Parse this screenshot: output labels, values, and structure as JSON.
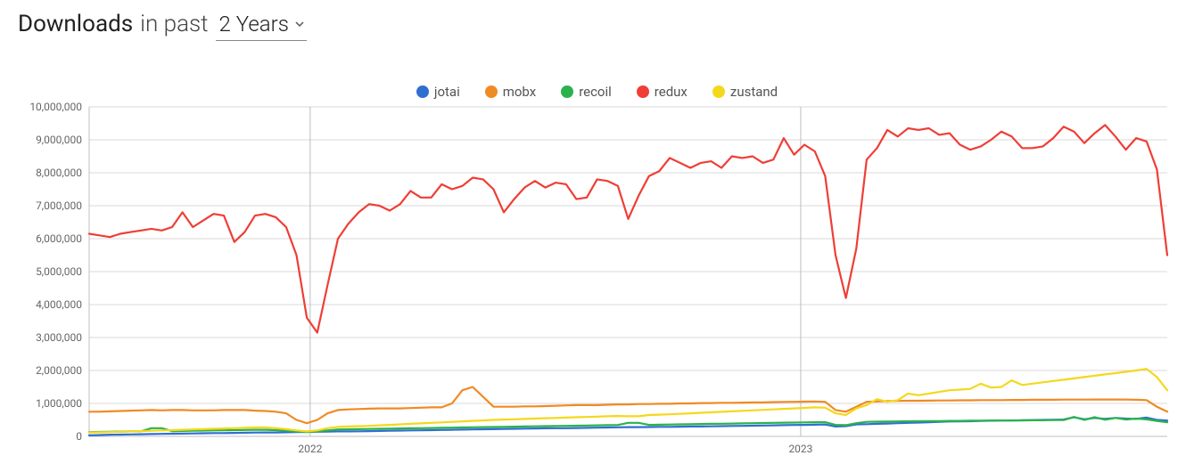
{
  "header": {
    "title_strong": "Downloads",
    "title_rest": "in past",
    "period_value": "2 Years"
  },
  "chart": {
    "type": "line",
    "background_color": "#ffffff",
    "grid_color": "#d8d8d8",
    "axis_color": "#bfbfbf",
    "year_line_color": "#bdbdbd",
    "line_width": 2.2,
    "ylim": [
      0,
      10000000
    ],
    "ytick_step": 1000000,
    "ytick_labels": [
      "0",
      "1,000,000",
      "2,000,000",
      "3,000,000",
      "4,000,000",
      "5,000,000",
      "6,000,000",
      "7,000,000",
      "8,000,000",
      "9,000,000",
      "10,000,000"
    ],
    "x_year_markers": [
      {
        "label": "2022",
        "t": 0.205
      },
      {
        "label": "2023",
        "t": 0.66
      }
    ],
    "series": [
      {
        "name": "jotai",
        "color": "#2f6fd0",
        "values": [
          30000,
          40000,
          50000,
          55000,
          60000,
          65000,
          70000,
          75000,
          80000,
          85000,
          90000,
          95000,
          100000,
          100000,
          105000,
          110000,
          115000,
          120000,
          120000,
          125000,
          130000,
          135000,
          140000,
          145000,
          150000,
          150000,
          155000,
          160000,
          165000,
          170000,
          175000,
          180000,
          185000,
          190000,
          195000,
          200000,
          205000,
          210000,
          215000,
          220000,
          225000,
          230000,
          235000,
          240000,
          245000,
          250000,
          250000,
          255000,
          260000,
          265000,
          270000,
          275000,
          280000,
          280000,
          285000,
          290000,
          290000,
          295000,
          300000,
          300000,
          305000,
          310000,
          315000,
          320000,
          325000,
          330000,
          335000,
          340000,
          345000,
          350000,
          355000,
          360000,
          300000,
          310000,
          365000,
          370000,
          380000,
          390000,
          400000,
          410000,
          420000,
          430000,
          440000,
          450000,
          455000,
          460000,
          470000,
          475000,
          480000,
          485000,
          490000,
          495000,
          500000,
          505000,
          510000,
          580000,
          520000,
          560000,
          530000,
          560000,
          540000,
          530000,
          570000,
          500000,
          480000
        ]
      },
      {
        "name": "mobx",
        "color": "#f08a24",
        "values": [
          750000,
          750000,
          760000,
          770000,
          780000,
          790000,
          800000,
          790000,
          800000,
          800000,
          790000,
          790000,
          790000,
          800000,
          800000,
          800000,
          780000,
          770000,
          750000,
          700000,
          500000,
          400000,
          500000,
          700000,
          800000,
          820000,
          830000,
          840000,
          850000,
          850000,
          850000,
          860000,
          870000,
          880000,
          880000,
          1000000,
          1400000,
          1500000,
          1200000,
          900000,
          900000,
          900000,
          910000,
          910000,
          920000,
          930000,
          940000,
          950000,
          950000,
          950000,
          960000,
          970000,
          970000,
          980000,
          980000,
          990000,
          990000,
          1000000,
          1000000,
          1010000,
          1010000,
          1020000,
          1020000,
          1025000,
          1030000,
          1030000,
          1040000,
          1045000,
          1050000,
          1055000,
          1060000,
          1050000,
          800000,
          750000,
          900000,
          1050000,
          1060000,
          1070000,
          1075000,
          1080000,
          1080000,
          1085000,
          1090000,
          1090000,
          1095000,
          1095000,
          1100000,
          1100000,
          1100000,
          1105000,
          1105000,
          1110000,
          1110000,
          1110000,
          1115000,
          1115000,
          1115000,
          1120000,
          1120000,
          1120000,
          1120000,
          1110000,
          1100000,
          900000,
          750000
        ]
      },
      {
        "name": "recoil",
        "color": "#2bb24c",
        "values": [
          130000,
          135000,
          140000,
          145000,
          150000,
          155000,
          250000,
          250000,
          160000,
          165000,
          170000,
          175000,
          180000,
          185000,
          190000,
          195000,
          200000,
          200000,
          190000,
          170000,
          150000,
          130000,
          150000,
          180000,
          210000,
          215000,
          220000,
          225000,
          230000,
          235000,
          240000,
          245000,
          250000,
          255000,
          260000,
          265000,
          270000,
          275000,
          280000,
          285000,
          290000,
          295000,
          300000,
          305000,
          310000,
          315000,
          320000,
          325000,
          330000,
          335000,
          340000,
          345000,
          410000,
          410000,
          350000,
          355000,
          360000,
          365000,
          370000,
          375000,
          380000,
          385000,
          390000,
          395000,
          400000,
          405000,
          410000,
          415000,
          420000,
          425000,
          430000,
          430000,
          350000,
          340000,
          400000,
          440000,
          445000,
          450000,
          455000,
          460000,
          460000,
          465000,
          465000,
          470000,
          470000,
          475000,
          475000,
          480000,
          480000,
          485000,
          485000,
          490000,
          490000,
          495000,
          495000,
          590000,
          500000,
          580000,
          505000,
          560000,
          510000,
          540000,
          515000,
          470000,
          430000
        ]
      },
      {
        "name": "redux",
        "color": "#ef3e36",
        "values": [
          6150000,
          6100000,
          6050000,
          6150000,
          6200000,
          6250000,
          6300000,
          6250000,
          6350000,
          6800000,
          6350000,
          6550000,
          6750000,
          6700000,
          5900000,
          6200000,
          6700000,
          6750000,
          6650000,
          6350000,
          5500000,
          3600000,
          3150000,
          4600000,
          6000000,
          6450000,
          6800000,
          7050000,
          7000000,
          6850000,
          7050000,
          7450000,
          7250000,
          7250000,
          7650000,
          7500000,
          7600000,
          7850000,
          7800000,
          7500000,
          6800000,
          7200000,
          7550000,
          7750000,
          7550000,
          7700000,
          7650000,
          7200000,
          7250000,
          7800000,
          7750000,
          7600000,
          6600000,
          7300000,
          7900000,
          8050000,
          8450000,
          8300000,
          8150000,
          8300000,
          8350000,
          8150000,
          8500000,
          8450000,
          8500000,
          8300000,
          8400000,
          9050000,
          8550000,
          8850000,
          8650000,
          7900000,
          5500000,
          4200000,
          5700000,
          8400000,
          8750000,
          9300000,
          9100000,
          9350000,
          9300000,
          9350000,
          9150000,
          9200000,
          8850000,
          8700000,
          8800000,
          9000000,
          9250000,
          9100000,
          8750000,
          8750000,
          8800000,
          9050000,
          9400000,
          9250000,
          8900000,
          9200000,
          9450000,
          9100000,
          8700000,
          9050000,
          8950000,
          8100000,
          5500000
        ]
      },
      {
        "name": "zustand",
        "color": "#f4d81c",
        "values": [
          120000,
          125000,
          130000,
          140000,
          150000,
          160000,
          170000,
          180000,
          190000,
          200000,
          210000,
          220000,
          230000,
          240000,
          250000,
          260000,
          270000,
          270000,
          250000,
          220000,
          180000,
          150000,
          180000,
          250000,
          290000,
          300000,
          310000,
          320000,
          335000,
          350000,
          365000,
          380000,
          395000,
          410000,
          425000,
          440000,
          455000,
          470000,
          485000,
          500000,
          510000,
          520000,
          530000,
          540000,
          550000,
          560000,
          570000,
          580000,
          590000,
          600000,
          610000,
          620000,
          610000,
          610000,
          650000,
          660000,
          670000,
          685000,
          700000,
          715000,
          730000,
          745000,
          760000,
          775000,
          790000,
          805000,
          820000,
          835000,
          850000,
          865000,
          880000,
          870000,
          700000,
          650000,
          850000,
          950000,
          1130000,
          1050000,
          1100000,
          1300000,
          1250000,
          1300000,
          1350000,
          1400000,
          1420000,
          1440000,
          1600000,
          1480000,
          1500000,
          1700000,
          1560000,
          1600000,
          1640000,
          1680000,
          1720000,
          1760000,
          1800000,
          1840000,
          1880000,
          1920000,
          1960000,
          2000000,
          2050000,
          1800000,
          1400000
        ]
      }
    ]
  }
}
